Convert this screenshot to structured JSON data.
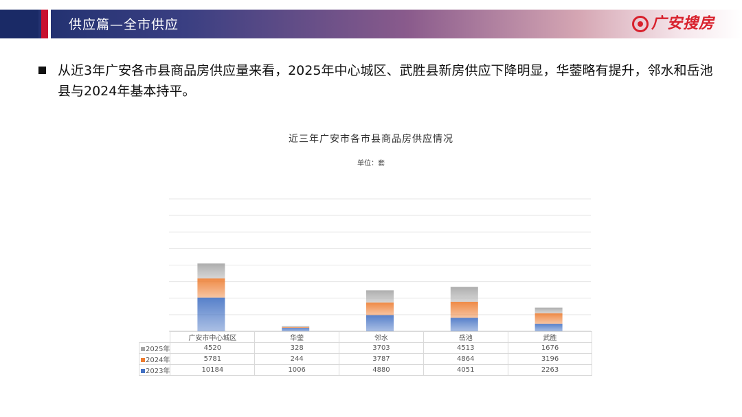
{
  "header": {
    "title": "供应篇—全市供应",
    "logo_text": "广安搜房"
  },
  "paragraph": "从近3年广安各市县商品房供应量来看，2025年中心城区、武胜县新房供应下降明显，华蓥略有提升，邻水和岳池县与2024年基本持平。",
  "colors": {
    "y2023": "#4472c4",
    "y2024": "#ed7d31",
    "y2025": "#a5a5a5"
  },
  "chart_data": {
    "type": "bar",
    "stacked": true,
    "title": "近三年广安市各市县商品房供应情况",
    "subtitle": "单位：套",
    "categories": [
      "广安市中心城区",
      "华蓥",
      "邻水",
      "岳池",
      "武胜"
    ],
    "series": [
      {
        "name": "2023年",
        "values": [
          10184,
          1006,
          4880,
          4051,
          2263
        ]
      },
      {
        "name": "2024年",
        "values": [
          5781,
          244,
          3787,
          4864,
          3196
        ]
      },
      {
        "name": "2025年",
        "values": [
          4520,
          328,
          3703,
          4513,
          1676
        ]
      }
    ],
    "ylim": [
      0,
      40000
    ],
    "grid": true,
    "legend": "data-table"
  }
}
